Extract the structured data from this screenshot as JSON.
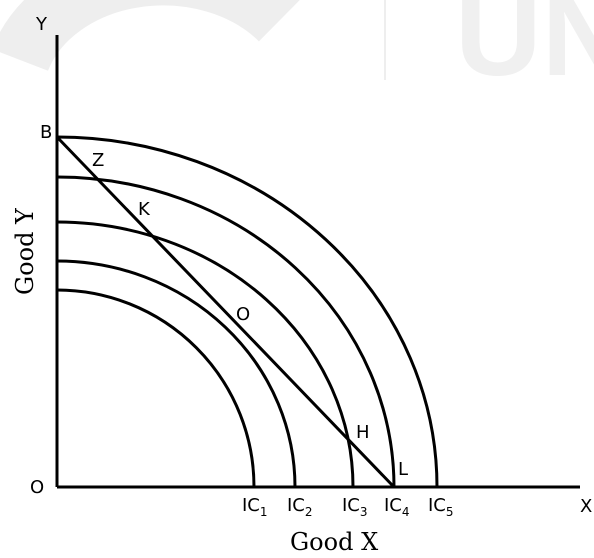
{
  "axes": {
    "y_letter": "Y",
    "x_letter": "X",
    "origin": "O",
    "y_title": "Good Y",
    "x_title": "Good X"
  },
  "points": {
    "B": "B",
    "Z": "Z",
    "K": "K",
    "O": "O",
    "H": "H",
    "L": "L"
  },
  "curves": [
    {
      "label": "IC",
      "sub": "1"
    },
    {
      "label": "IC",
      "sub": "2"
    },
    {
      "label": "IC",
      "sub": "3"
    },
    {
      "label": "IC",
      "sub": "4"
    },
    {
      "label": "IC",
      "sub": "5"
    }
  ],
  "watermark": {
    "text": "UN"
  }
}
